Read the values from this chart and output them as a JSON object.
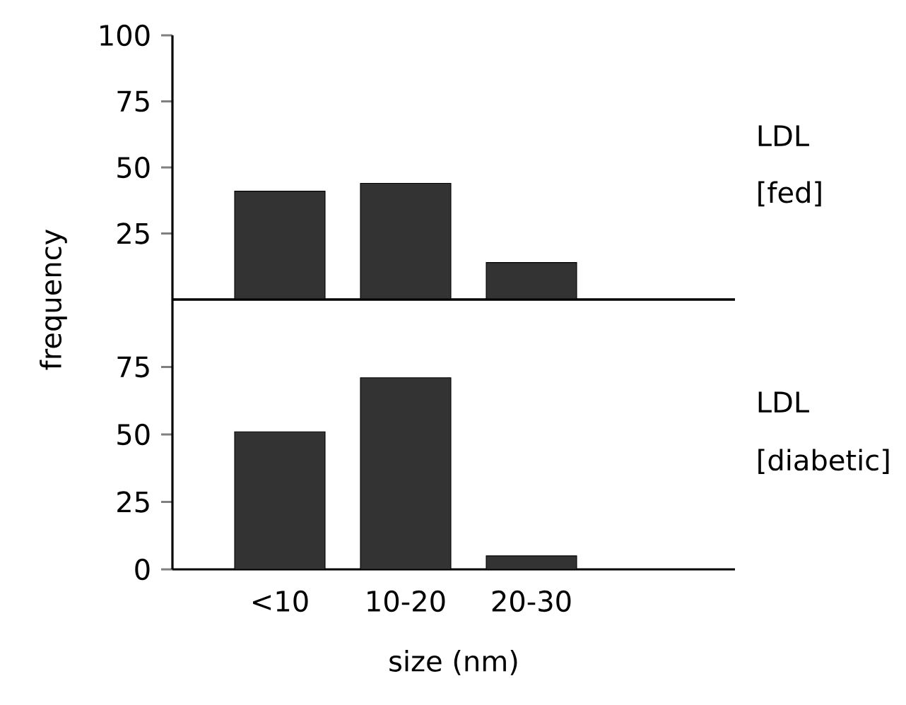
{
  "chart_data": [
    {
      "type": "bar",
      "ylabel": "frequency",
      "categories": [
        null,
        null,
        null
      ],
      "values": [
        41,
        44,
        14
      ],
      "color": "#333333",
      "ylim": [
        0,
        100
      ],
      "yticks": [
        25,
        50,
        75,
        100
      ],
      "tick_labels": "y",
      "annotations": [
        "LDL",
        "[fed]"
      ]
    },
    {
      "type": "bar",
      "xlabel": "size (nm)",
      "categories": [
        "<10",
        "10-20",
        "20-30"
      ],
      "values": [
        51,
        71,
        5
      ],
      "color": "#333333",
      "ylim": [
        0,
        100
      ],
      "yticks": [
        0,
        25,
        50,
        75
      ],
      "annotations": [
        "LDL",
        "[diabetic]"
      ]
    }
  ]
}
